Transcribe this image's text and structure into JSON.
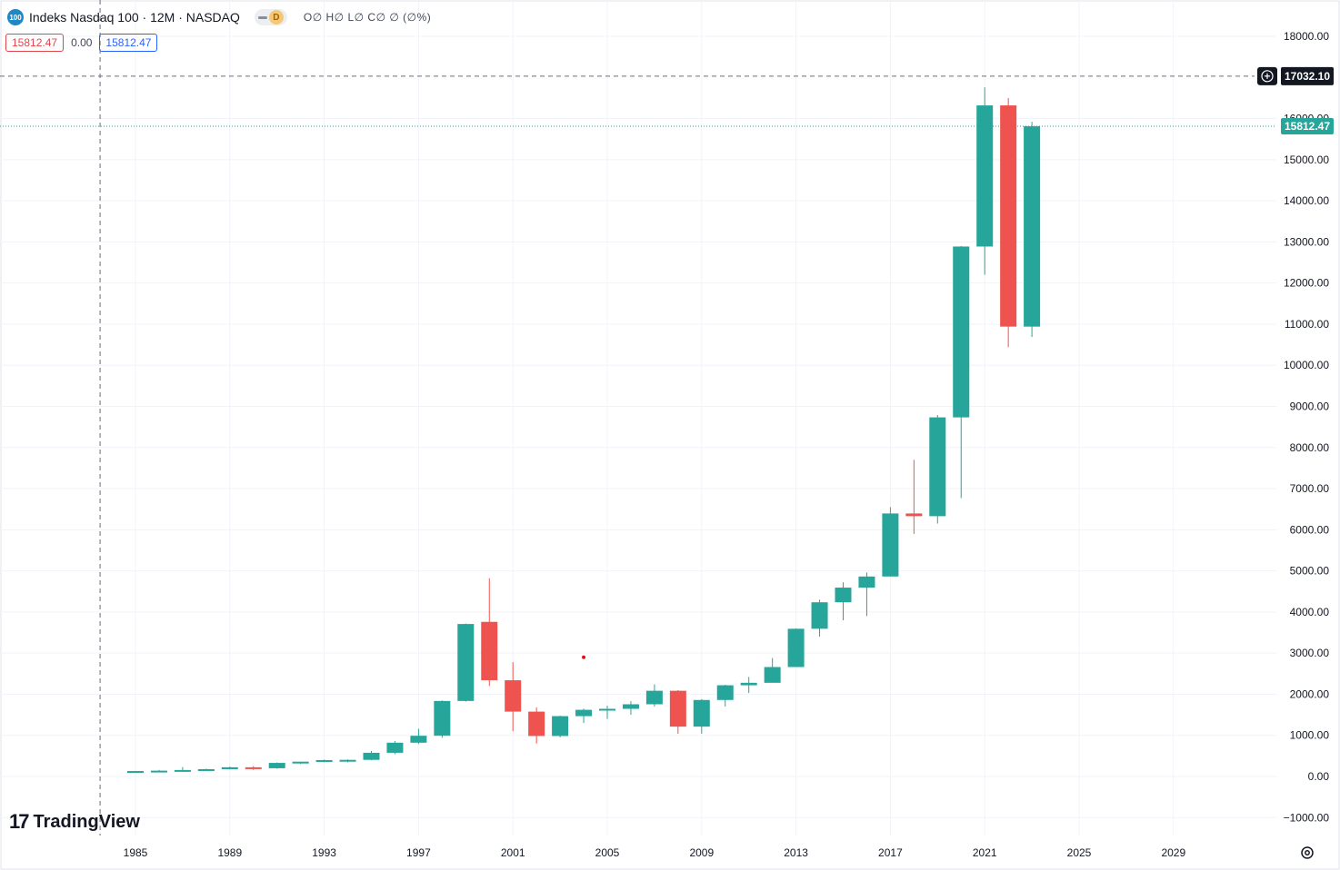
{
  "header": {
    "symbol_badge": "100",
    "title": "Indeks Nasdaq 100 · 12M · NASDAQ",
    "interval_chip": "D",
    "ohlc": "O∅ H∅ L∅ C∅ ∅ (∅%)",
    "bid": "15812.47",
    "spread": "0.00",
    "ask": "15812.47"
  },
  "branding": {
    "logo_mark": "17",
    "logo_text": "TradingView"
  },
  "crosshair": {
    "price_label": "17032.10",
    "price_value": 17032.1,
    "x_year": 1983.5
  },
  "last_price": {
    "label": "15812.47",
    "value": 15812.47
  },
  "colors": {
    "up": "#26a69a",
    "down": "#ef5350",
    "grid": "#f0f3fa",
    "axis_text": "#131722",
    "last_price": "#26a69a",
    "crosshair_label_bg": "#131722"
  },
  "chart_data": {
    "type": "candlestick",
    "title": "Indeks Nasdaq 100 · 12M · NASDAQ",
    "xlabel": "",
    "ylabel": "",
    "ylim": [
      -1250,
      18600
    ],
    "xlim": [
      1982.7,
      2032.6
    ],
    "x_ticks": [
      "1985",
      "1989",
      "1993",
      "1997",
      "2001",
      "2005",
      "2009",
      "2013",
      "2017",
      "2021",
      "2025",
      "2029"
    ],
    "y_ticks": [
      -1000,
      0,
      1000,
      2000,
      3000,
      4000,
      5000,
      6000,
      7000,
      8000,
      9000,
      10000,
      11000,
      12000,
      13000,
      14000,
      15000,
      16000,
      18000
    ],
    "y_tick_labels": [
      "−1000.00",
      "0.00",
      "1000.00",
      "2000.00",
      "3000.00",
      "4000.00",
      "5000.00",
      "6000.00",
      "7000.00",
      "8000.00",
      "9000.00",
      "10000.00",
      "11000.00",
      "12000.00",
      "13000.00",
      "14000.00",
      "15000.00",
      "16000.00",
      "18000.00"
    ],
    "grid": true,
    "candles": [
      {
        "year": 1985,
        "open": 115,
        "high": 135,
        "low": 105,
        "close": 132
      },
      {
        "year": 1986,
        "open": 132,
        "high": 160,
        "low": 125,
        "close": 141
      },
      {
        "year": 1987,
        "open": 141,
        "high": 230,
        "low": 120,
        "close": 157
      },
      {
        "year": 1988,
        "open": 157,
        "high": 190,
        "low": 150,
        "close": 177
      },
      {
        "year": 1989,
        "open": 177,
        "high": 240,
        "low": 170,
        "close": 223
      },
      {
        "year": 1990,
        "open": 223,
        "high": 250,
        "low": 160,
        "close": 200
      },
      {
        "year": 1991,
        "open": 200,
        "high": 340,
        "low": 190,
        "close": 330
      },
      {
        "year": 1992,
        "open": 330,
        "high": 360,
        "low": 300,
        "close": 360
      },
      {
        "year": 1993,
        "open": 360,
        "high": 410,
        "low": 345,
        "close": 398
      },
      {
        "year": 1994,
        "open": 398,
        "high": 415,
        "low": 345,
        "close": 404
      },
      {
        "year": 1995,
        "open": 404,
        "high": 620,
        "low": 395,
        "close": 576
      },
      {
        "year": 1996,
        "open": 576,
        "high": 860,
        "low": 545,
        "close": 821
      },
      {
        "year": 1997,
        "open": 821,
        "high": 1160,
        "low": 790,
        "close": 990
      },
      {
        "year": 1998,
        "open": 990,
        "high": 1850,
        "low": 940,
        "close": 1836
      },
      {
        "year": 1999,
        "open": 1836,
        "high": 3720,
        "low": 1820,
        "close": 3708
      },
      {
        "year": 2000,
        "open": 3760,
        "high": 4820,
        "low": 2200,
        "close": 2340
      },
      {
        "year": 2001,
        "open": 2340,
        "high": 2780,
        "low": 1100,
        "close": 1577
      },
      {
        "year": 2002,
        "open": 1577,
        "high": 1680,
        "low": 800,
        "close": 984
      },
      {
        "year": 2003,
        "open": 984,
        "high": 1480,
        "low": 950,
        "close": 1467
      },
      {
        "year": 2004,
        "open": 1467,
        "high": 1650,
        "low": 1300,
        "close": 1621
      },
      {
        "year": 2005,
        "open": 1621,
        "high": 1720,
        "low": 1400,
        "close": 1645
      },
      {
        "year": 2006,
        "open": 1645,
        "high": 1830,
        "low": 1500,
        "close": 1756
      },
      {
        "year": 2007,
        "open": 1756,
        "high": 2240,
        "low": 1700,
        "close": 2084
      },
      {
        "year": 2008,
        "open": 2084,
        "high": 2100,
        "low": 1040,
        "close": 1212
      },
      {
        "year": 2009,
        "open": 1212,
        "high": 1880,
        "low": 1040,
        "close": 1860
      },
      {
        "year": 2010,
        "open": 1860,
        "high": 2230,
        "low": 1700,
        "close": 2218
      },
      {
        "year": 2011,
        "open": 2218,
        "high": 2420,
        "low": 2030,
        "close": 2278
      },
      {
        "year": 2012,
        "open": 2278,
        "high": 2880,
        "low": 2300,
        "close": 2661
      },
      {
        "year": 2013,
        "open": 2661,
        "high": 3600,
        "low": 2700,
        "close": 3592
      },
      {
        "year": 2014,
        "open": 3592,
        "high": 4300,
        "low": 3400,
        "close": 4236
      },
      {
        "year": 2015,
        "open": 4236,
        "high": 4720,
        "low": 3800,
        "close": 4593
      },
      {
        "year": 2016,
        "open": 4593,
        "high": 4960,
        "low": 3900,
        "close": 4863
      },
      {
        "year": 2017,
        "open": 4863,
        "high": 6550,
        "low": 4860,
        "close": 6396
      },
      {
        "year": 2018,
        "open": 6396,
        "high": 7700,
        "low": 5900,
        "close": 6330
      },
      {
        "year": 2019,
        "open": 6330,
        "high": 8790,
        "low": 6150,
        "close": 8733
      },
      {
        "year": 2020,
        "open": 8733,
        "high": 12900,
        "low": 6770,
        "close": 12888
      },
      {
        "year": 2021,
        "open": 12888,
        "high": 16760,
        "low": 12200,
        "close": 16320
      },
      {
        "year": 2022,
        "open": 16320,
        "high": 16500,
        "low": 10440,
        "close": 10940
      },
      {
        "year": 2023,
        "open": 10940,
        "high": 15920,
        "low": 10690,
        "close": 15812
      }
    ],
    "marker": {
      "year": 2004,
      "value": 2900,
      "color": "#e0101e"
    }
  }
}
